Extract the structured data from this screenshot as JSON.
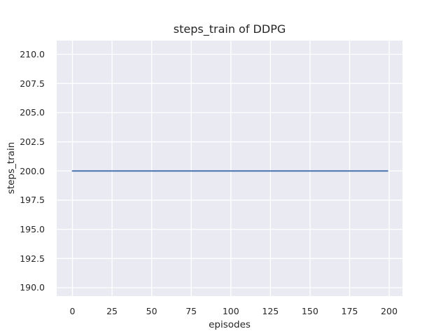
{
  "chart_data": {
    "type": "line",
    "title": "steps_train of DDPG",
    "xlabel": "episodes",
    "ylabel": "steps_train",
    "x_ticks": [
      "0",
      "25",
      "50",
      "75",
      "100",
      "125",
      "150",
      "175",
      "200"
    ],
    "y_ticks": [
      "190.0",
      "192.5",
      "195.0",
      "197.5",
      "200.0",
      "202.5",
      "205.0",
      "207.5",
      "210.0"
    ],
    "xlim": [
      -9.95,
      208.4
    ],
    "ylim": [
      189.28,
      211.17
    ],
    "grid": true,
    "legend_position": "none",
    "series": [
      {
        "name": "steps_train",
        "color": "#4c72b0",
        "x": [
          0,
          199
        ],
        "y": [
          200,
          200
        ],
        "description": "constant line: steps_train = 200 for every episode from 0 to 199"
      }
    ],
    "colors": {
      "figure_background": "#ffffff",
      "plot_background": "#eaeaf2",
      "grid": "#ffffff",
      "text": "#262626"
    }
  }
}
